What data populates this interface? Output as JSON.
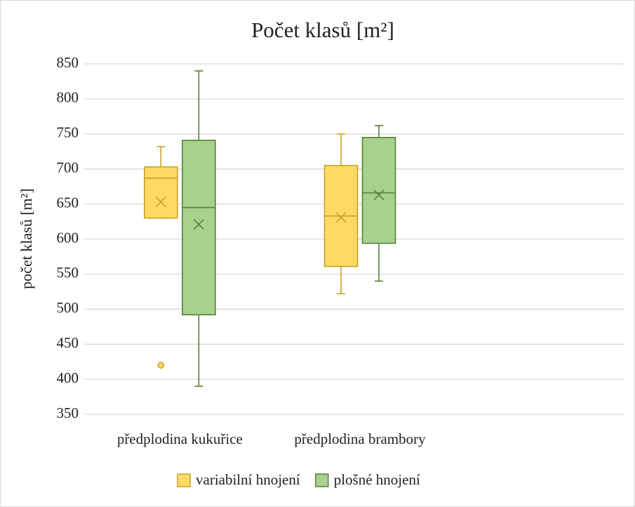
{
  "chart_data": {
    "type": "box",
    "title": "Počet klasů [m²]",
    "y_label": "počet klasů [m²]",
    "categories": [
      "předplodina kukuřice",
      "předplodina brambory",
      null
    ],
    "ylim": [
      350,
      850
    ],
    "yticks": [
      350,
      400,
      450,
      500,
      550,
      600,
      650,
      700,
      750,
      800,
      850
    ],
    "grid": true,
    "legend": "bottom",
    "series": [
      {
        "name": "variabilní hnojení",
        "color": "#FFD966",
        "edge": "#C9A227",
        "min": [
          630,
          522,
          null
        ],
        "q1": [
          630,
          561,
          null
        ],
        "median": [
          687,
          633,
          null
        ],
        "q3": [
          703,
          705,
          null
        ],
        "max": [
          732,
          750,
          null
        ],
        "mean": [
          653,
          631,
          null
        ],
        "outliers": [
          [
            420
          ],
          [],
          null
        ]
      },
      {
        "name": "plošné hnojení",
        "color": "#A9D18E",
        "edge": "#548235",
        "min": [
          390,
          540,
          null
        ],
        "q1": [
          492,
          594,
          null
        ],
        "median": [
          645,
          666,
          null
        ],
        "q3": [
          741,
          745,
          null
        ],
        "max": [
          840,
          762,
          null
        ],
        "mean": [
          621,
          663,
          null
        ],
        "outliers": [
          [],
          [],
          null
        ]
      }
    ]
  }
}
